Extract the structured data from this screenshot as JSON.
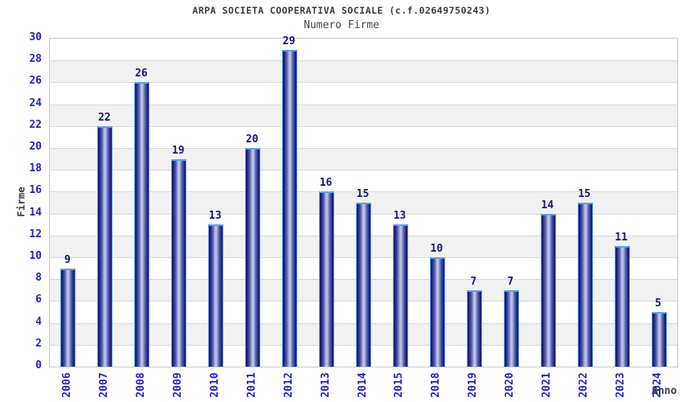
{
  "chart_data": {
    "type": "bar",
    "title": "ARPA SOCIETA COOPERATIVA SOCIALE (c.f.02649750243)",
    "subtitle": "Numero Firme",
    "xlabel": "Anno",
    "ylabel": "Firme",
    "categories": [
      "2006",
      "2007",
      "2008",
      "2009",
      "2010",
      "2011",
      "2012",
      "2013",
      "2014",
      "2015",
      "2018",
      "2019",
      "2020",
      "2021",
      "2022",
      "2023",
      "2024"
    ],
    "values": [
      9,
      22,
      26,
      19,
      13,
      20,
      29,
      16,
      15,
      13,
      10,
      7,
      7,
      14,
      15,
      11,
      5
    ],
    "ylim": [
      0,
      30
    ],
    "ytick_step": 2,
    "yticks": [
      0,
      2,
      4,
      6,
      8,
      10,
      12,
      14,
      16,
      18,
      20,
      22,
      24,
      26,
      28,
      30
    ],
    "grid": "horizontal",
    "legend": "none",
    "colors": {
      "tick_label_blue": "#2222cc",
      "value_label_navy": "#15157d",
      "bar_edge_dark": "#14146e",
      "bar_mid": "#5d68ae",
      "bar_center_light": "#bcc3e6",
      "bar_outline_lightblue": "#63a2e4",
      "band_gray": "#f1f1f1",
      "band_white": "#ffffff",
      "gridline_gray": "#d9d9d9",
      "plot_border_gray": "#c9c9c9",
      "axis_title_dark": "#3c3c3c"
    }
  }
}
